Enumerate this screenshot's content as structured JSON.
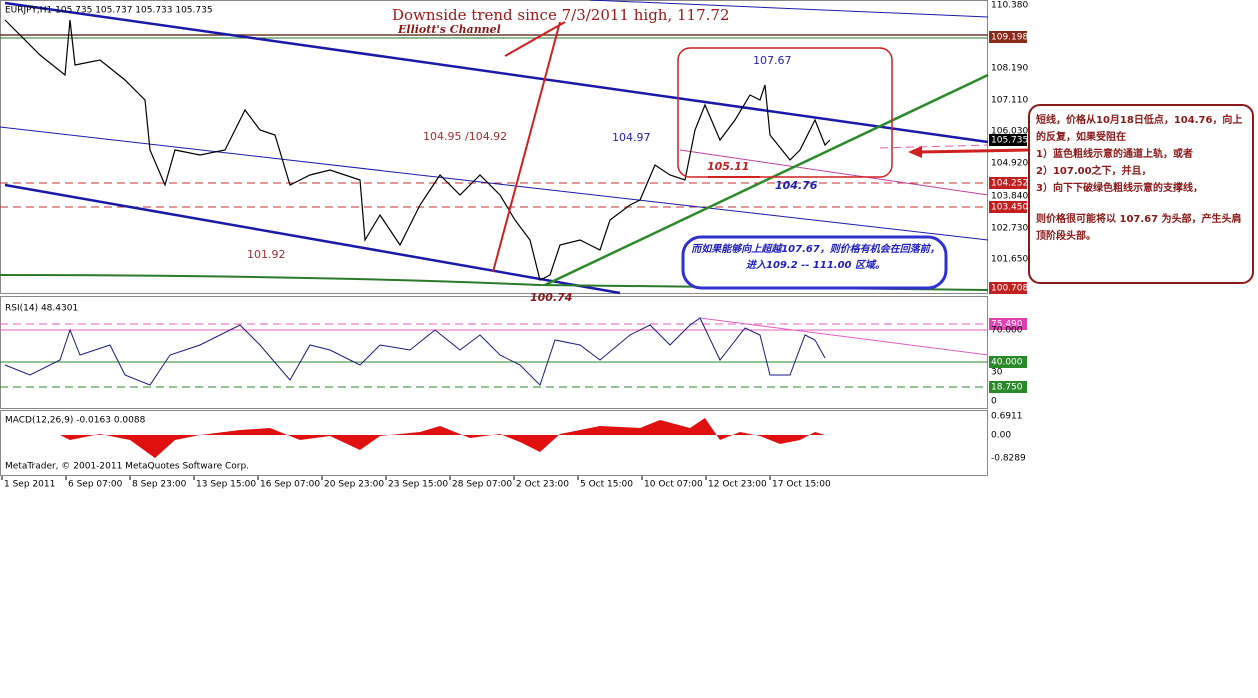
{
  "main_panel": {
    "header": "EURJPY,H1  105.735 105.737 105.733 105.735",
    "price_labels": [
      "110.380",
      "109.198",
      "108.190",
      "107.110",
      "106.030",
      "105.735",
      "104.920",
      "104.252",
      "103.840",
      "103.450",
      "102.730",
      "101.650",
      "100.708"
    ],
    "annotations": {
      "trend": "Downside trend since 7/3/2011 high, 117.72",
      "channel": "Elliott's Channel",
      "high": "107.67",
      "mid_left": "104.95 /104.92",
      "mid": "104.97",
      "low_a": "105.11",
      "low_b": "104.76",
      "left_low": "101.92",
      "bottom": "100.74"
    },
    "blue_note": "而如果能够向上超越107.67，则价格有机会在回落前，进入109.2 -- 111.00 区域。"
  },
  "rsi_panel": {
    "header": "RSI(14) 48.4301",
    "labels": [
      "75.490",
      "70.000",
      "40.000",
      "30",
      "18.750",
      "0"
    ]
  },
  "macd_panel": {
    "header": "MACD(12,26,9) -0.0163 0.0088",
    "labels": [
      "0.6911",
      "0.00",
      "-0.8289"
    ],
    "footer": "MetaTrader, © 2001-2011 MetaQuotes Software Corp."
  },
  "time_axis": [
    "1 Sep 2011",
    "6 Sep 07:00",
    "8 Sep 23:00",
    "13 Sep 15:00",
    "16 Sep 07:00",
    "20 Sep 23:00",
    "23 Sep 15:00",
    "28 Sep 07:00",
    "2 Oct 23:00",
    "5 Oct 15:00",
    "10 Oct 07:00",
    "12 Oct 23:00",
    "17 Oct 15:00"
  ],
  "callout": {
    "lines": [
      "短线，价格从10月18日低点，104.76，向上的反复，如果受阻在",
      "1）蓝色粗线示意的通道上轨，或者",
      "2）107.00之下，并且，",
      "3）向下下破绿色粗线示意的支撑线，",
      "则价格很可能将以 107.67 为头部，产生头肩顶阶段头部。"
    ]
  }
}
